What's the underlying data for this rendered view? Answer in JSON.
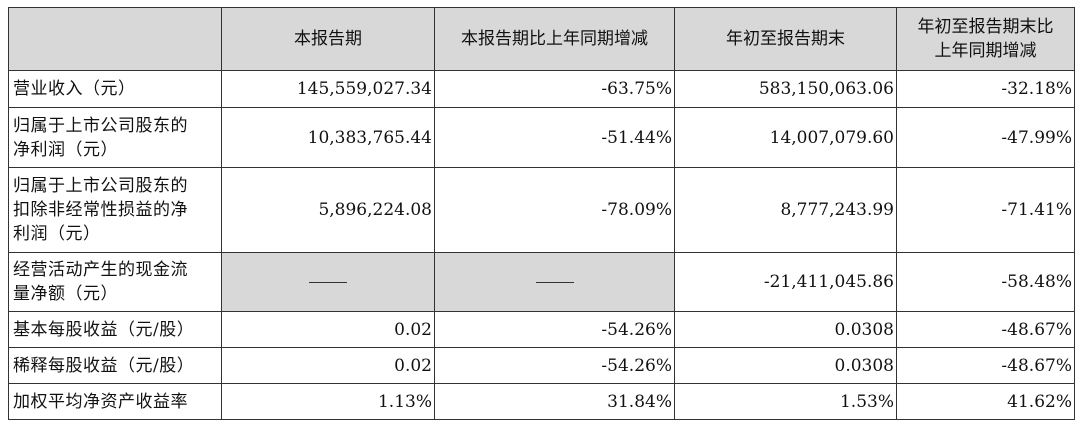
{
  "table": {
    "headers": [
      "",
      "本报告期",
      "本报告期比上年同期增减",
      "年初至报告期末",
      "年初至报告期末比上年同期增减"
    ],
    "header_last_lines": [
      "年初至报告期末比",
      "上年同期增减"
    ],
    "rows": [
      {
        "label_lines": [
          "营业收入（元）"
        ],
        "period": "145,559,027.34",
        "period_change": "-63.75%",
        "ytd": "583,150,063.06",
        "ytd_change": "-32.18%"
      },
      {
        "label_lines": [
          "归属于上市公司股东的",
          "净利润（元）"
        ],
        "period": "10,383,765.44",
        "period_change": "-51.44%",
        "ytd": "14,007,079.60",
        "ytd_change": "-47.99%"
      },
      {
        "label_lines": [
          "归属于上市公司股东的",
          "扣除非经常性损益的净",
          "利润（元）"
        ],
        "period": "5,896,224.08",
        "period_change": "-78.09%",
        "ytd": "8,777,243.99",
        "ytd_change": "-71.41%"
      },
      {
        "label_lines": [
          "经营活动产生的现金流",
          "量净额（元）"
        ],
        "period": "——",
        "period_change": "——",
        "ytd": "-21,411,045.86",
        "ytd_change": "-58.48%"
      },
      {
        "label_lines": [
          "基本每股收益（元/股）"
        ],
        "period": "0.02",
        "period_change": "-54.26%",
        "ytd": "0.0308",
        "ytd_change": "-48.67%"
      },
      {
        "label_lines": [
          "稀释每股收益（元/股）"
        ],
        "period": "0.02",
        "period_change": "-54.26%",
        "ytd": "0.0308",
        "ytd_change": "-48.67%"
      },
      {
        "label_lines": [
          "加权平均净资产收益率"
        ],
        "period": "1.13%",
        "period_change": "31.84%",
        "ytd": "1.53%",
        "ytd_change": "41.62%"
      }
    ]
  }
}
